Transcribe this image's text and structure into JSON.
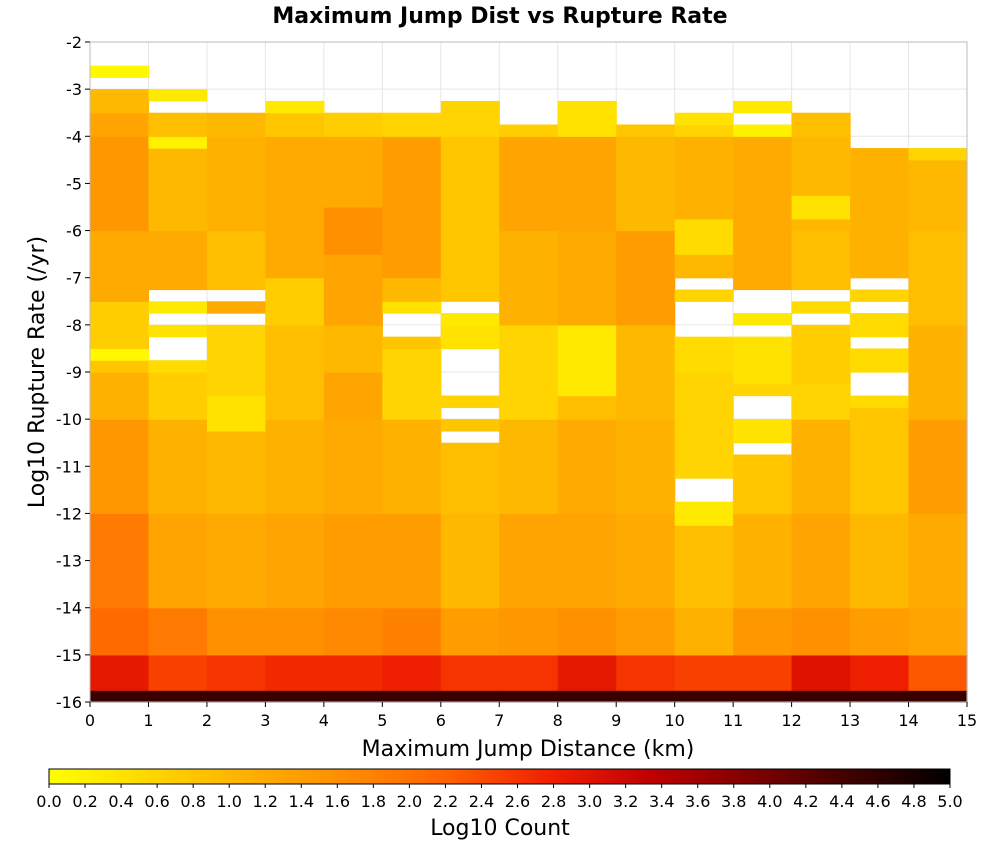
{
  "chart_data": {
    "type": "heatmap",
    "title": "Maximum Jump Dist vs Rupture Rate",
    "xlabel": "Maximum Jump Distance (km)",
    "ylabel": "Log10 Rupture Rate (/yr)",
    "xlim": [
      0,
      15
    ],
    "ylim": [
      -16,
      -2
    ],
    "xticks": [
      "0",
      "1",
      "2",
      "3",
      "4",
      "5",
      "6",
      "7",
      "8",
      "9",
      "10",
      "11",
      "12",
      "13",
      "14",
      "15"
    ],
    "yticks": [
      "-2",
      "-3",
      "-4",
      "-5",
      "-6",
      "-7",
      "-8",
      "-9",
      "-10",
      "-11",
      "-12",
      "-13",
      "-14",
      "-15",
      "-16"
    ],
    "x_bin_width": 1,
    "y_bin_height": 0.25,
    "colorbar": {
      "label": "Log10 Count",
      "min": 0,
      "max": 5,
      "ticks": [
        "0.0",
        "0.2",
        "0.4",
        "0.6",
        "0.8",
        "1.0",
        "1.2",
        "1.4",
        "1.6",
        "1.8",
        "2.0",
        "2.2",
        "2.4",
        "2.6",
        "2.8",
        "3.0",
        "3.2",
        "3.4",
        "3.6",
        "3.8",
        "4.0",
        "4.2",
        "4.4",
        "4.6",
        "4.8",
        "5.0"
      ],
      "colors": [
        "#ffff00",
        "#ffd700",
        "#ffb000",
        "#ff8c00",
        "#ff6000",
        "#f02000",
        "#c00000",
        "#800000",
        "#400000",
        "#000000"
      ]
    },
    "grid": true,
    "columns": [
      {
        "x": 0,
        "cells": [
          [
            -16,
            -15.75,
            4.5
          ],
          [
            -15.75,
            -15,
            2.9
          ],
          [
            -15,
            -14,
            2.1
          ],
          [
            -14,
            -12,
            1.9
          ],
          [
            -12,
            -10,
            1.5
          ],
          [
            -10,
            -9,
            1.1
          ],
          [
            -9,
            -8.75,
            0.8
          ],
          [
            -8.75,
            -8.5,
            0.1
          ],
          [
            -8.5,
            -7.5,
            0.7
          ],
          [
            -7.5,
            -6,
            1.2
          ],
          [
            -6,
            -4,
            1.5
          ],
          [
            -4,
            -3.5,
            1.3
          ],
          [
            -3.5,
            -3,
            1.0
          ],
          [
            -2.75,
            -2.5,
            0.1
          ]
        ]
      },
      {
        "x": 1,
        "cells": [
          [
            -16,
            -15.75,
            4.5
          ],
          [
            -15.75,
            -15,
            2.5
          ],
          [
            -15,
            -14,
            1.9
          ],
          [
            -14,
            -12,
            1.3
          ],
          [
            -12,
            -10,
            1.1
          ],
          [
            -10,
            -9,
            0.7
          ],
          [
            -9,
            -8.75,
            0.5
          ],
          [
            -8.25,
            -8,
            0.4
          ],
          [
            -7.75,
            -7.5,
            0.3
          ],
          [
            -7.25,
            -6,
            1.2
          ],
          [
            -6,
            -4.25,
            1.0
          ],
          [
            -4.25,
            -4,
            0.2
          ],
          [
            -4,
            -3.5,
            0.9
          ],
          [
            -3.25,
            -3,
            0.3
          ]
        ]
      },
      {
        "x": 2,
        "cells": [
          [
            -16,
            -15.75,
            4.5
          ],
          [
            -15.75,
            -15,
            2.6
          ],
          [
            -15,
            -14,
            1.6
          ],
          [
            -14,
            -12,
            1.2
          ],
          [
            -12,
            -10.25,
            1.0
          ],
          [
            -10.25,
            -9.5,
            0.4
          ],
          [
            -9.5,
            -8,
            0.6
          ],
          [
            -7.75,
            -7.5,
            1.2
          ],
          [
            -7.25,
            -6,
            0.9
          ],
          [
            -6,
            -4,
            1.1
          ],
          [
            -4,
            -3.5,
            1.0
          ]
        ]
      },
      {
        "x": 3,
        "cells": [
          [
            -16,
            -15.75,
            4.5
          ],
          [
            -15.75,
            -15,
            2.7
          ],
          [
            -15,
            -14,
            1.6
          ],
          [
            -14,
            -12,
            1.3
          ],
          [
            -12,
            -10,
            1.1
          ],
          [
            -10,
            -8,
            0.9
          ],
          [
            -8,
            -7,
            0.7
          ],
          [
            -7,
            -4,
            1.2
          ],
          [
            -4,
            -3.5,
            0.8
          ],
          [
            -3.5,
            -3.25,
            0.3
          ]
        ]
      },
      {
        "x": 4,
        "cells": [
          [
            -16,
            -15.75,
            4.5
          ],
          [
            -15.75,
            -15,
            2.7
          ],
          [
            -15,
            -14,
            1.7
          ],
          [
            -14,
            -12,
            1.4
          ],
          [
            -12,
            -10,
            1.2
          ],
          [
            -10,
            -9,
            1.3
          ],
          [
            -9,
            -8,
            1.0
          ],
          [
            -8,
            -6.5,
            1.3
          ],
          [
            -6.5,
            -5.5,
            1.6
          ],
          [
            -5.5,
            -4,
            1.2
          ],
          [
            -4,
            -3.5,
            0.7
          ]
        ]
      },
      {
        "x": 5,
        "cells": [
          [
            -16,
            -15.75,
            4.5
          ],
          [
            -15.75,
            -15,
            2.8
          ],
          [
            -15,
            -14,
            1.8
          ],
          [
            -14,
            -12,
            1.4
          ],
          [
            -12,
            -10,
            1.1
          ],
          [
            -10,
            -8.5,
            0.6
          ],
          [
            -8.5,
            -8.25,
            0.8
          ],
          [
            -7.75,
            -7.5,
            0.4
          ],
          [
            -7.5,
            -7,
            1.0
          ],
          [
            -7,
            -4,
            1.4
          ],
          [
            -4,
            -3.5,
            0.6
          ]
        ]
      },
      {
        "x": 6,
        "cells": [
          [
            -16,
            -15.75,
            4.5
          ],
          [
            -15.75,
            -15,
            2.6
          ],
          [
            -15,
            -14,
            1.4
          ],
          [
            -14,
            -12,
            1.0
          ],
          [
            -12,
            -10.5,
            0.9
          ],
          [
            -10.25,
            -10,
            0.8
          ],
          [
            -9.75,
            -9.5,
            0.6
          ],
          [
            -8.5,
            -8,
            0.4
          ],
          [
            -8,
            -7.75,
            0.3
          ],
          [
            -7.5,
            -4,
            0.8
          ],
          [
            -4,
            -3.25,
            0.6
          ]
        ]
      },
      {
        "x": 7,
        "cells": [
          [
            -16,
            -15.75,
            4.5
          ],
          [
            -15.75,
            -15,
            2.6
          ],
          [
            -15,
            -14,
            1.5
          ],
          [
            -14,
            -12,
            1.3
          ],
          [
            -12,
            -10,
            1.0
          ],
          [
            -10,
            -8,
            0.6
          ],
          [
            -8,
            -6,
            1.1
          ],
          [
            -6,
            -4,
            1.3
          ],
          [
            -4,
            -3.75,
            0.7
          ]
        ]
      },
      {
        "x": 8,
        "cells": [
          [
            -16,
            -15.75,
            4.5
          ],
          [
            -15.75,
            -15,
            2.9
          ],
          [
            -15,
            -14,
            1.6
          ],
          [
            -14,
            -12,
            1.3
          ],
          [
            -12,
            -10,
            1.2
          ],
          [
            -10,
            -9.5,
            0.9
          ],
          [
            -9.5,
            -8,
            0.3
          ],
          [
            -8,
            -6,
            1.2
          ],
          [
            -6,
            -4,
            1.3
          ],
          [
            -4,
            -3.25,
            0.4
          ]
        ]
      },
      {
        "x": 9,
        "cells": [
          [
            -16,
            -15.75,
            4.5
          ],
          [
            -15.75,
            -15,
            2.6
          ],
          [
            -15,
            -14,
            1.4
          ],
          [
            -14,
            -12,
            1.2
          ],
          [
            -12,
            -10,
            1.1
          ],
          [
            -10,
            -8,
            1.0
          ],
          [
            -8,
            -6,
            1.4
          ],
          [
            -6,
            -4,
            1.0
          ],
          [
            -4,
            -3.75,
            0.8
          ]
        ]
      },
      {
        "x": 10,
        "cells": [
          [
            -16,
            -15.75,
            4.5
          ],
          [
            -15.75,
            -15,
            2.5
          ],
          [
            -15,
            -14,
            1.1
          ],
          [
            -14,
            -12.25,
            0.9
          ],
          [
            -12.25,
            -11.75,
            0.3
          ],
          [
            -11.25,
            -9,
            0.6
          ],
          [
            -9,
            -8.25,
            0.5
          ],
          [
            -7.5,
            -7.25,
            0.6
          ],
          [
            -7,
            -6.5,
            1.0
          ],
          [
            -6.5,
            -5.75,
            0.5
          ],
          [
            -5.75,
            -4,
            1.1
          ],
          [
            -4,
            -3.75,
            0.6
          ],
          [
            -3.75,
            -3.5,
            0.4
          ]
        ]
      },
      {
        "x": 11,
        "cells": [
          [
            -16,
            -15.75,
            4.5
          ],
          [
            -15.75,
            -15,
            2.5
          ],
          [
            -15,
            -14,
            1.5
          ],
          [
            -14,
            -12,
            1.1
          ],
          [
            -12,
            -10.75,
            0.8
          ],
          [
            -10.5,
            -10,
            0.4
          ],
          [
            -9.5,
            -9.25,
            0.6
          ],
          [
            -9.25,
            -8.25,
            0.4
          ],
          [
            -8,
            -7.75,
            0.3
          ],
          [
            -7.25,
            -4,
            1.2
          ],
          [
            -4,
            -3.75,
            0.2
          ],
          [
            -3.5,
            -3.25,
            0.3
          ]
        ]
      },
      {
        "x": 12,
        "cells": [
          [
            -16,
            -15.75,
            4.5
          ],
          [
            -15.75,
            -15,
            3.0
          ],
          [
            -15,
            -14,
            1.6
          ],
          [
            -14,
            -12,
            1.3
          ],
          [
            -12,
            -10,
            1.1
          ],
          [
            -10,
            -9.25,
            0.6
          ],
          [
            -9.25,
            -8,
            0.7
          ],
          [
            -7.75,
            -7.5,
            0.5
          ],
          [
            -7.25,
            -6,
            0.9
          ],
          [
            -6,
            -5.75,
            1.0
          ],
          [
            -5.75,
            -5.25,
            0.4
          ],
          [
            -5.25,
            -4,
            1.0
          ],
          [
            -4,
            -3.5,
            0.9
          ]
        ]
      },
      {
        "x": 13,
        "cells": [
          [
            -16,
            -15.75,
            4.5
          ],
          [
            -15.75,
            -15,
            2.8
          ],
          [
            -15,
            -14,
            1.4
          ],
          [
            -14,
            -12,
            1.0
          ],
          [
            -12,
            -9.75,
            0.8
          ],
          [
            -9.75,
            -9.5,
            0.5
          ],
          [
            -9,
            -8.5,
            0.5
          ],
          [
            -8.25,
            -7.75,
            0.5
          ],
          [
            -7.5,
            -7.25,
            0.6
          ],
          [
            -7,
            -4.25,
            1.1
          ]
        ]
      },
      {
        "x": 14,
        "cells": [
          [
            -16,
            -15.75,
            4.5
          ],
          [
            -15.75,
            -15,
            2.3
          ],
          [
            -15,
            -14,
            1.3
          ],
          [
            -14,
            -12,
            1.2
          ],
          [
            -12,
            -10,
            1.4
          ],
          [
            -10,
            -8,
            1.1
          ],
          [
            -8,
            -6,
            0.9
          ],
          [
            -6,
            -4.5,
            1.0
          ],
          [
            -4.5,
            -4.25,
            0.6
          ]
        ]
      }
    ]
  }
}
